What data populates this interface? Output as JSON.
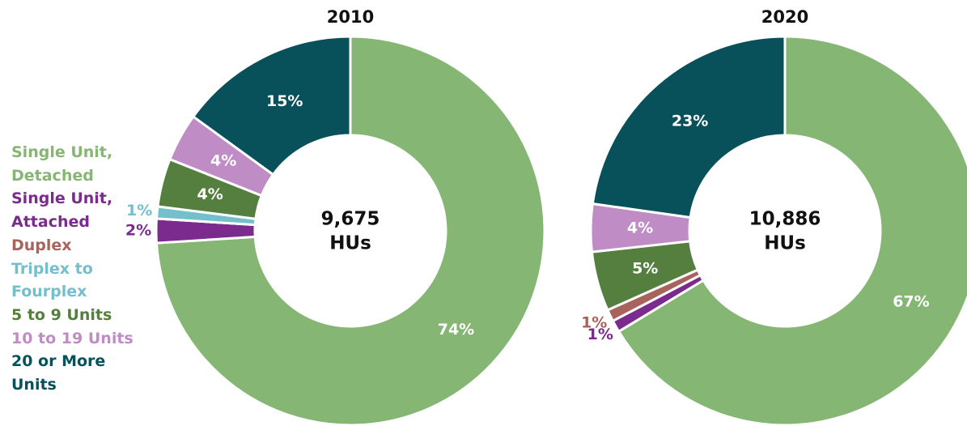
{
  "chart_data": [
    {
      "type": "donut",
      "title": "2010",
      "categories": [
        "Single Unit, Detached",
        "Single Unit, Attached",
        "Duplex",
        "Triplex to Fourplex",
        "5 to 9 Units",
        "10 to 19 Units",
        "20 or More Units"
      ],
      "colors": [
        "#86b674",
        "#7b2a8e",
        "#a8635d",
        "#74bfcc",
        "#557f3e",
        "#c08cc5",
        "#08505a"
      ],
      "values": [
        74,
        2,
        0,
        1,
        4,
        4,
        15
      ],
      "value_labels": [
        "74%",
        "2%",
        null,
        "1%",
        "4%",
        "4%",
        "15%"
      ],
      "center_text": [
        "9,675",
        "HUs"
      ]
    },
    {
      "type": "donut",
      "title": "2020",
      "categories": [
        "Single Unit, Detached",
        "Single Unit, Attached",
        "Duplex",
        "Triplex to Fourplex",
        "5 to 9 Units",
        "10 to 19 Units",
        "20 or More Units"
      ],
      "colors": [
        "#86b674",
        "#7b2a8e",
        "#a8635d",
        "#74bfcc",
        "#557f3e",
        "#c08cc5",
        "#08505a"
      ],
      "values": [
        67,
        1,
        1,
        0,
        5,
        4,
        23
      ],
      "value_labels": [
        "67%",
        "1%",
        "1%",
        null,
        "5%",
        "4%",
        "23%"
      ],
      "center_text": [
        "10,886",
        "HUs"
      ]
    }
  ]
}
